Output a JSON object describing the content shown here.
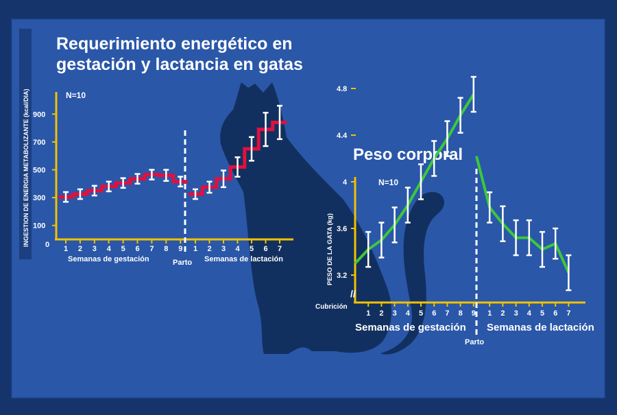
{
  "colors": {
    "background": "#16346c",
    "panel": "#2a57a8",
    "axis": "#f2c200",
    "cat": "#12305f",
    "energy_line": "#e0103e",
    "weight_line": "#3cc83c",
    "error_bar": "#ffffff"
  },
  "slide_title": {
    "line1": "Requerimiento energético en",
    "line2": "gestación y lactancia en gatas"
  },
  "chart_data": [
    {
      "type": "line",
      "step": true,
      "title": "Requerimiento energético en gestación y lactancia en gatas",
      "ylabel": "INGESTION DE ENERGIA METABOLIZANTE (kcal/DIA)",
      "annotation_n": "N=10",
      "ylim": [
        0,
        1000
      ],
      "yticks": [
        "0",
        "100",
        "300",
        "500",
        "700",
        "900"
      ],
      "divider_label": "Parto",
      "segments": [
        {
          "xlabel": "Semanas de gestación",
          "x": [
            "1",
            "2",
            "3",
            "4",
            "5",
            "6",
            "7",
            "8",
            "9"
          ],
          "y": [
            305,
            325,
            350,
            380,
            405,
            435,
            465,
            460,
            415
          ],
          "y_err": [
            35,
            35,
            35,
            35,
            35,
            35,
            35,
            40,
            35
          ]
        },
        {
          "xlabel": "Semanas de lactación",
          "x": [
            "1",
            "2",
            "3",
            "4",
            "5",
            "6",
            "7"
          ],
          "y": [
            325,
            375,
            435,
            520,
            650,
            790,
            840
          ],
          "y_err": [
            35,
            40,
            60,
            70,
            85,
            120,
            120
          ]
        }
      ]
    },
    {
      "type": "line",
      "title": "Peso corporal",
      "ylabel": "PESO DE LA GATA (kg)",
      "annotation_n": "N=10",
      "ylim": [
        2.85,
        4.85
      ],
      "yticks": [
        "3.2",
        "3.6",
        "4",
        "4.4",
        "4.8"
      ],
      "start_label": "Cubrición",
      "divider_label": "Parto",
      "segments": [
        {
          "xlabel": "Semanas de gestación",
          "x": [
            "Cubrición",
            "1",
            "2",
            "3",
            "4",
            "5",
            "6",
            "7",
            "8",
            "9"
          ],
          "y": [
            3.3,
            3.42,
            3.5,
            3.63,
            3.8,
            4.0,
            4.2,
            4.37,
            4.57,
            4.75
          ],
          "y_err": [
            0,
            0.15,
            0.15,
            0.15,
            0.15,
            0.15,
            0.15,
            0.15,
            0.15,
            0.15
          ]
        },
        {
          "xlabel": "Semanas de lactación",
          "x": [
            "Parto",
            "1",
            "2",
            "3",
            "4",
            "5",
            "6",
            "7"
          ],
          "y": [
            4.22,
            3.78,
            3.64,
            3.52,
            3.52,
            3.42,
            3.47,
            3.22
          ],
          "y_err": [
            0,
            0.13,
            0.15,
            0.15,
            0.15,
            0.15,
            0.13,
            0.15
          ]
        }
      ]
    }
  ]
}
